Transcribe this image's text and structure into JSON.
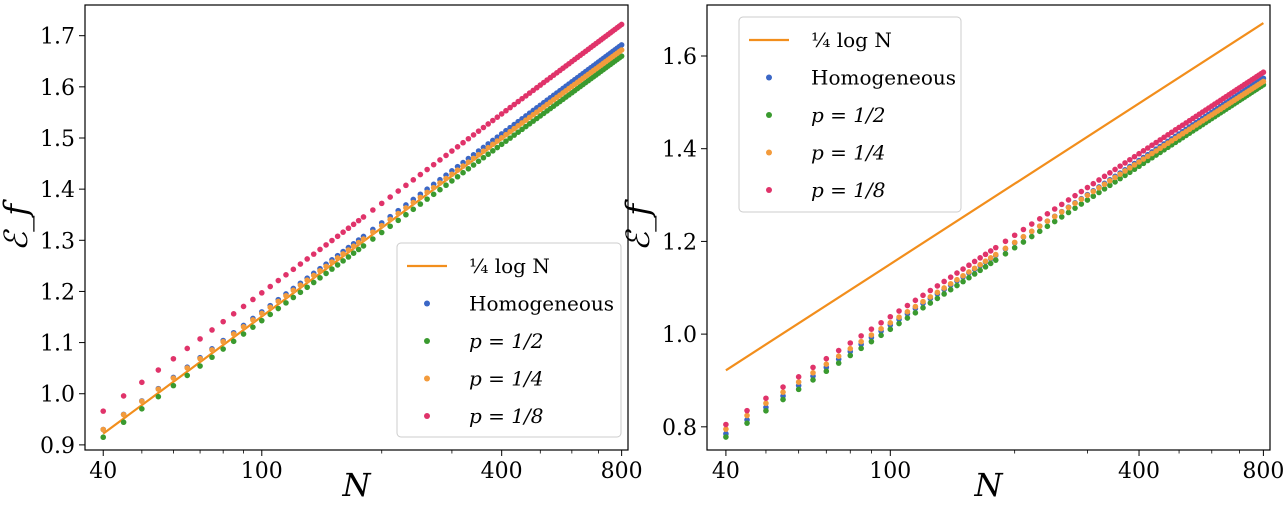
{
  "colors": {
    "fit": "#f28e1c",
    "homogeneous": "#3b67c6",
    "p_half": "#3a9a2f",
    "p_quarter": "#f39b3c",
    "p_eighth": "#e0336a"
  },
  "chart_data": [
    {
      "type": "scatter",
      "xscale": "log",
      "xlabel": "N",
      "ylabel": "ℰ_f",
      "xlim": [
        36,
        830
      ],
      "ylim": [
        0.89,
        1.76
      ],
      "xticks": [
        40,
        100,
        400,
        800
      ],
      "xtick_labels": [
        "40",
        "100",
        "400",
        "800"
      ],
      "yticks": [
        0.9,
        1.0,
        1.1,
        1.2,
        1.3,
        1.4,
        1.5,
        1.6,
        1.7
      ],
      "ytick_labels": [
        "0.9",
        "1.0",
        "1.1",
        "1.2",
        "1.3",
        "1.4",
        "1.5",
        "1.6",
        "1.7"
      ],
      "legend_position": "lower-right",
      "line": {
        "name": "¼ log N",
        "x": [
          40,
          800
        ],
        "y": [
          0.922,
          1.671
        ]
      },
      "series": [
        {
          "name": "Homogeneous",
          "y_at_40": 0.93,
          "y_at_800": 1.682
        },
        {
          "name": "p = 1/2",
          "y_at_40": 0.915,
          "y_at_800": 1.66
        },
        {
          "name": "p = 1/4",
          "y_at_40": 0.93,
          "y_at_800": 1.672
        },
        {
          "name": "p = 1/8",
          "y_at_40": 0.966,
          "y_at_800": 1.722
        }
      ]
    },
    {
      "type": "scatter",
      "xscale": "log",
      "xlabel": "N",
      "ylabel": "ℰ_f",
      "xlim": [
        36,
        830
      ],
      "ylim": [
        0.75,
        1.71
      ],
      "xticks": [
        40,
        100,
        400,
        800
      ],
      "xtick_labels": [
        "40",
        "100",
        "400",
        "800"
      ],
      "yticks": [
        0.8,
        1.0,
        1.2,
        1.4,
        1.6
      ],
      "ytick_labels": [
        "0.8",
        "1.0",
        "1.2",
        "1.4",
        "1.6"
      ],
      "legend_position": "upper-left",
      "line": {
        "name": "¼ log N",
        "x": [
          40,
          800
        ],
        "y": [
          0.922,
          1.671
        ]
      },
      "series": [
        {
          "name": "Homogeneous",
          "y_at_40": 0.785,
          "y_at_800": 1.552
        },
        {
          "name": "p = 1/2",
          "y_at_40": 0.778,
          "y_at_800": 1.538
        },
        {
          "name": "p = 1/4",
          "y_at_40": 0.795,
          "y_at_800": 1.545
        },
        {
          "name": "p = 1/8",
          "y_at_40": 0.805,
          "y_at_800": 1.565
        }
      ]
    }
  ]
}
